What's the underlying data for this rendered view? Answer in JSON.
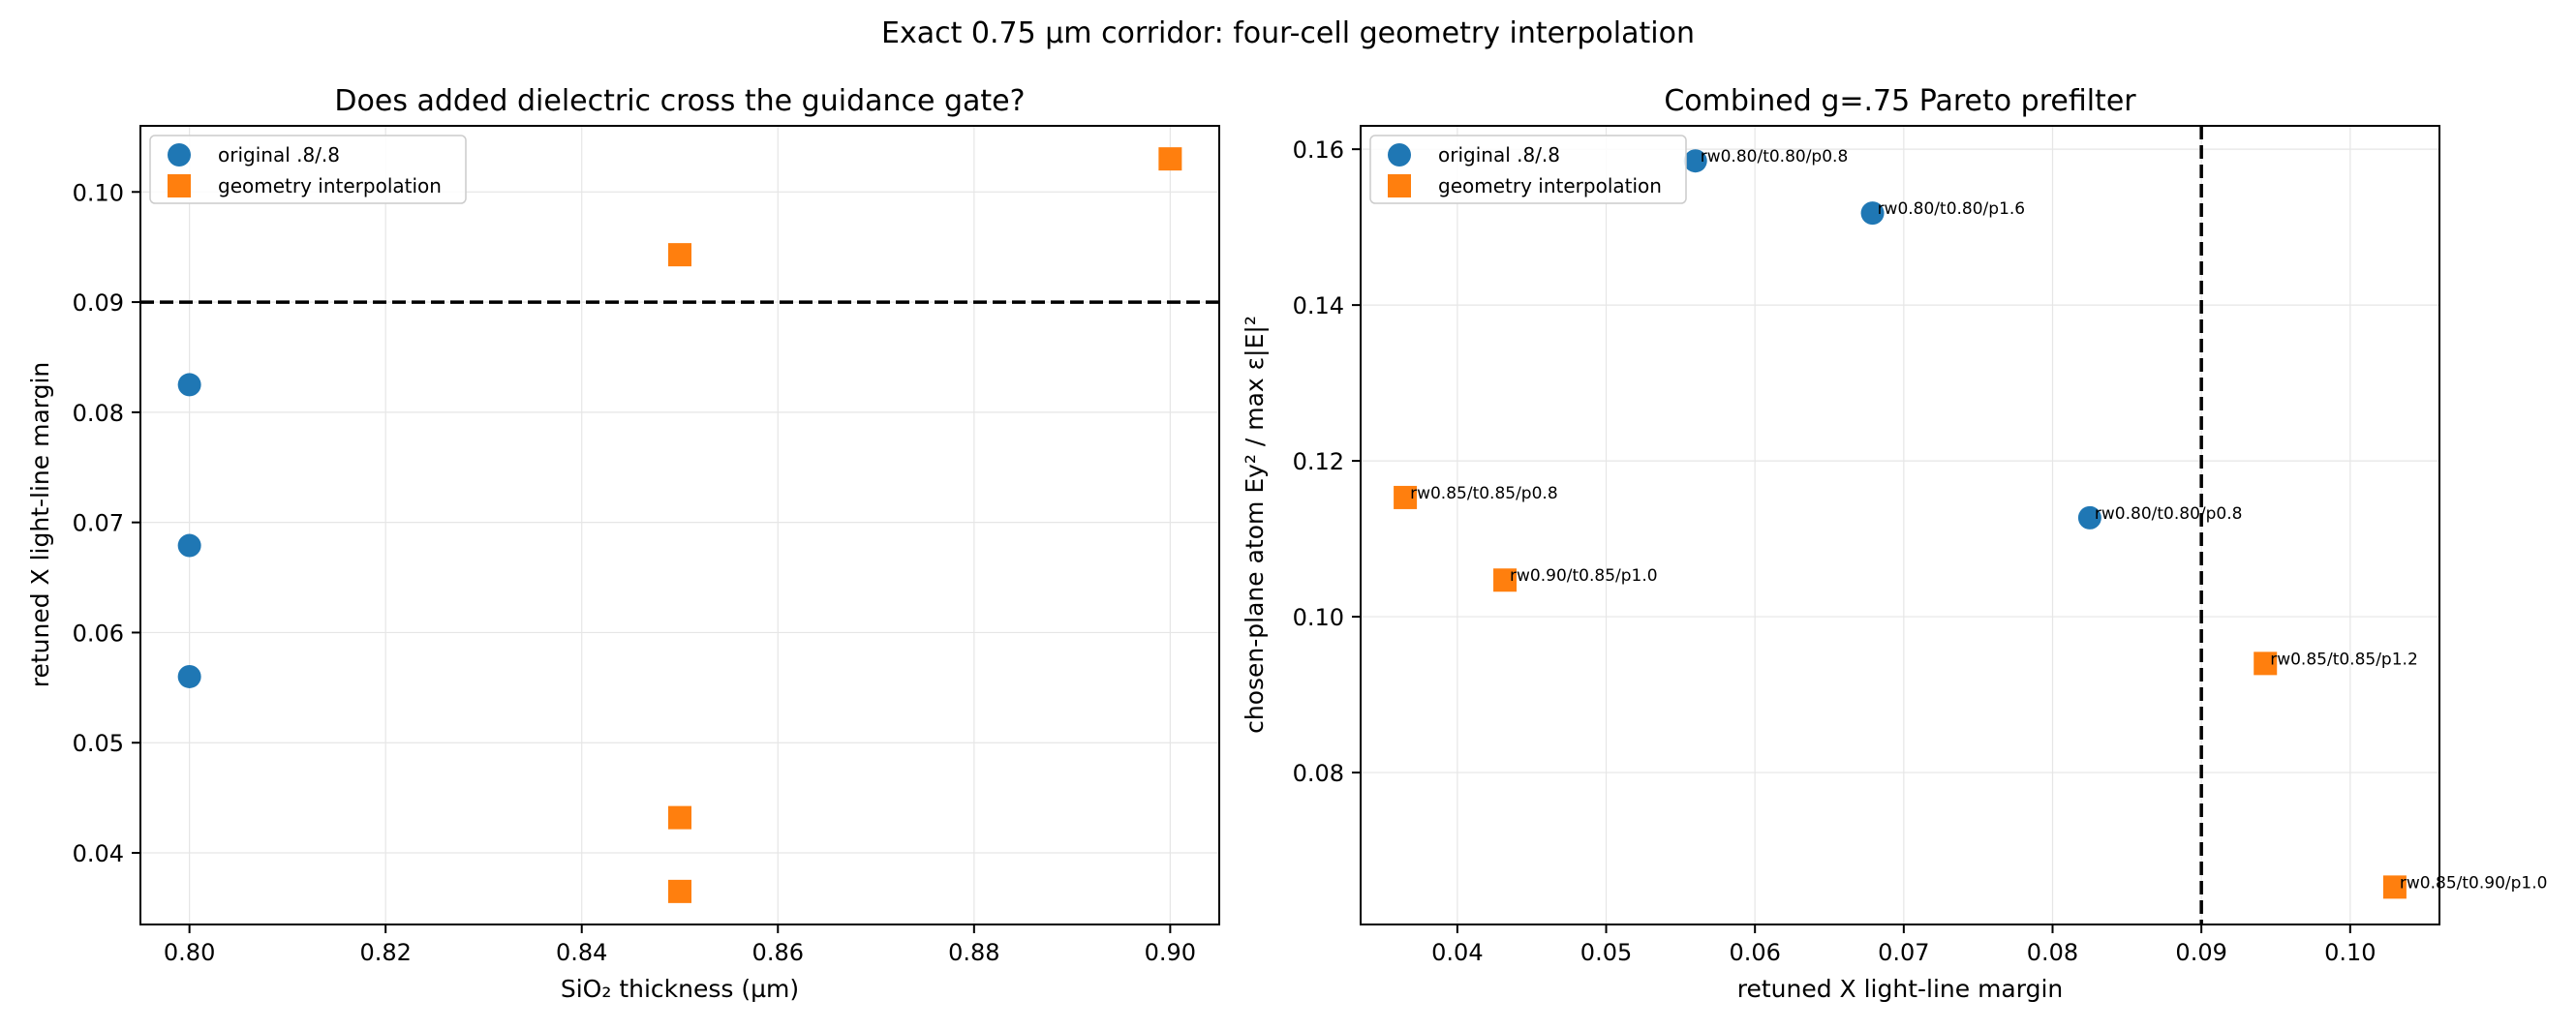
{
  "figure": {
    "suptitle": "Exact 0.75 µm corridor: four-cell geometry interpolation"
  },
  "colors": {
    "original": "#1f77b4",
    "interp": "#ff7f0e",
    "grid": "#e6e6e6",
    "reference_line": "#000000"
  },
  "chart_data": [
    {
      "type": "scatter",
      "title": "Does added dielectric cross the guidance gate?",
      "xlabel": "SiO₂ thickness (µm)",
      "ylabel": "retuned X light-line margin",
      "xlim": [
        0.795,
        0.905
      ],
      "ylim": [
        0.0335,
        0.106
      ],
      "xticks": [
        0.8,
        0.82,
        0.84,
        0.86,
        0.88,
        0.9
      ],
      "xtick_labels": [
        "0.80",
        "0.82",
        "0.84",
        "0.86",
        "0.88",
        "0.90"
      ],
      "yticks": [
        0.04,
        0.05,
        0.06,
        0.07,
        0.08,
        0.09,
        0.1
      ],
      "ytick_labels": [
        "0.04",
        "0.05",
        "0.06",
        "0.07",
        "0.08",
        "0.09",
        "0.10"
      ],
      "grid": true,
      "legend_position": "top-left",
      "reference_line": {
        "orientation": "horizontal",
        "value": 0.09,
        "style": "dashed"
      },
      "series": [
        {
          "name": "original .8/.8",
          "marker": "circle",
          "color": "#1f77b4",
          "points": [
            {
              "x": 0.8,
              "y": 0.0825
            },
            {
              "x": 0.8,
              "y": 0.0679
            },
            {
              "x": 0.8,
              "y": 0.056
            }
          ]
        },
        {
          "name": "geometry interpolation",
          "marker": "square",
          "color": "#ff7f0e",
          "points": [
            {
              "x": 0.85,
              "y": 0.0943
            },
            {
              "x": 0.85,
              "y": 0.0432
            },
            {
              "x": 0.85,
              "y": 0.0365
            },
            {
              "x": 0.9,
              "y": 0.103
            }
          ]
        }
      ]
    },
    {
      "type": "scatter",
      "title": "Combined g=.75 Pareto prefilter",
      "xlabel": "retuned X light-line margin",
      "ylabel": "chosen-plane atom Ey² / max ε|E|²",
      "xlim": [
        0.0335,
        0.106
      ],
      "ylim": [
        0.0605,
        0.163
      ],
      "xticks": [
        0.04,
        0.05,
        0.06,
        0.07,
        0.08,
        0.09,
        0.1
      ],
      "xtick_labels": [
        "0.04",
        "0.05",
        "0.06",
        "0.07",
        "0.08",
        "0.09",
        "0.10"
      ],
      "yticks": [
        0.08,
        0.1,
        0.12,
        0.14,
        0.16
      ],
      "ytick_labels": [
        "0.08",
        "0.10",
        "0.12",
        "0.14",
        "0.16"
      ],
      "grid": true,
      "legend_position": "top-left",
      "reference_line": {
        "orientation": "vertical",
        "value": 0.09,
        "style": "dashed"
      },
      "series": [
        {
          "name": "original .8/.8",
          "marker": "circle",
          "color": "#1f77b4",
          "points": [
            {
              "x": 0.056,
              "y": 0.1585,
              "label": "rw0.80/t0.80/p0.8"
            },
            {
              "x": 0.0679,
              "y": 0.1518,
              "label": "rw0.80/t0.80/p1.6"
            },
            {
              "x": 0.0825,
              "y": 0.1127,
              "label": "rw0.80/t0.80/p0.8"
            }
          ]
        },
        {
          "name": "geometry interpolation",
          "marker": "square",
          "color": "#ff7f0e",
          "points": [
            {
              "x": 0.0365,
              "y": 0.1153,
              "label": "rw0.85/t0.85/p0.8"
            },
            {
              "x": 0.0432,
              "y": 0.1047,
              "label": "rw0.90/t0.85/p1.0"
            },
            {
              "x": 0.0943,
              "y": 0.094,
              "label": "rw0.85/t0.85/p1.2"
            },
            {
              "x": 0.103,
              "y": 0.0653,
              "label": "rw0.85/t0.90/p1.0"
            }
          ]
        }
      ]
    }
  ]
}
